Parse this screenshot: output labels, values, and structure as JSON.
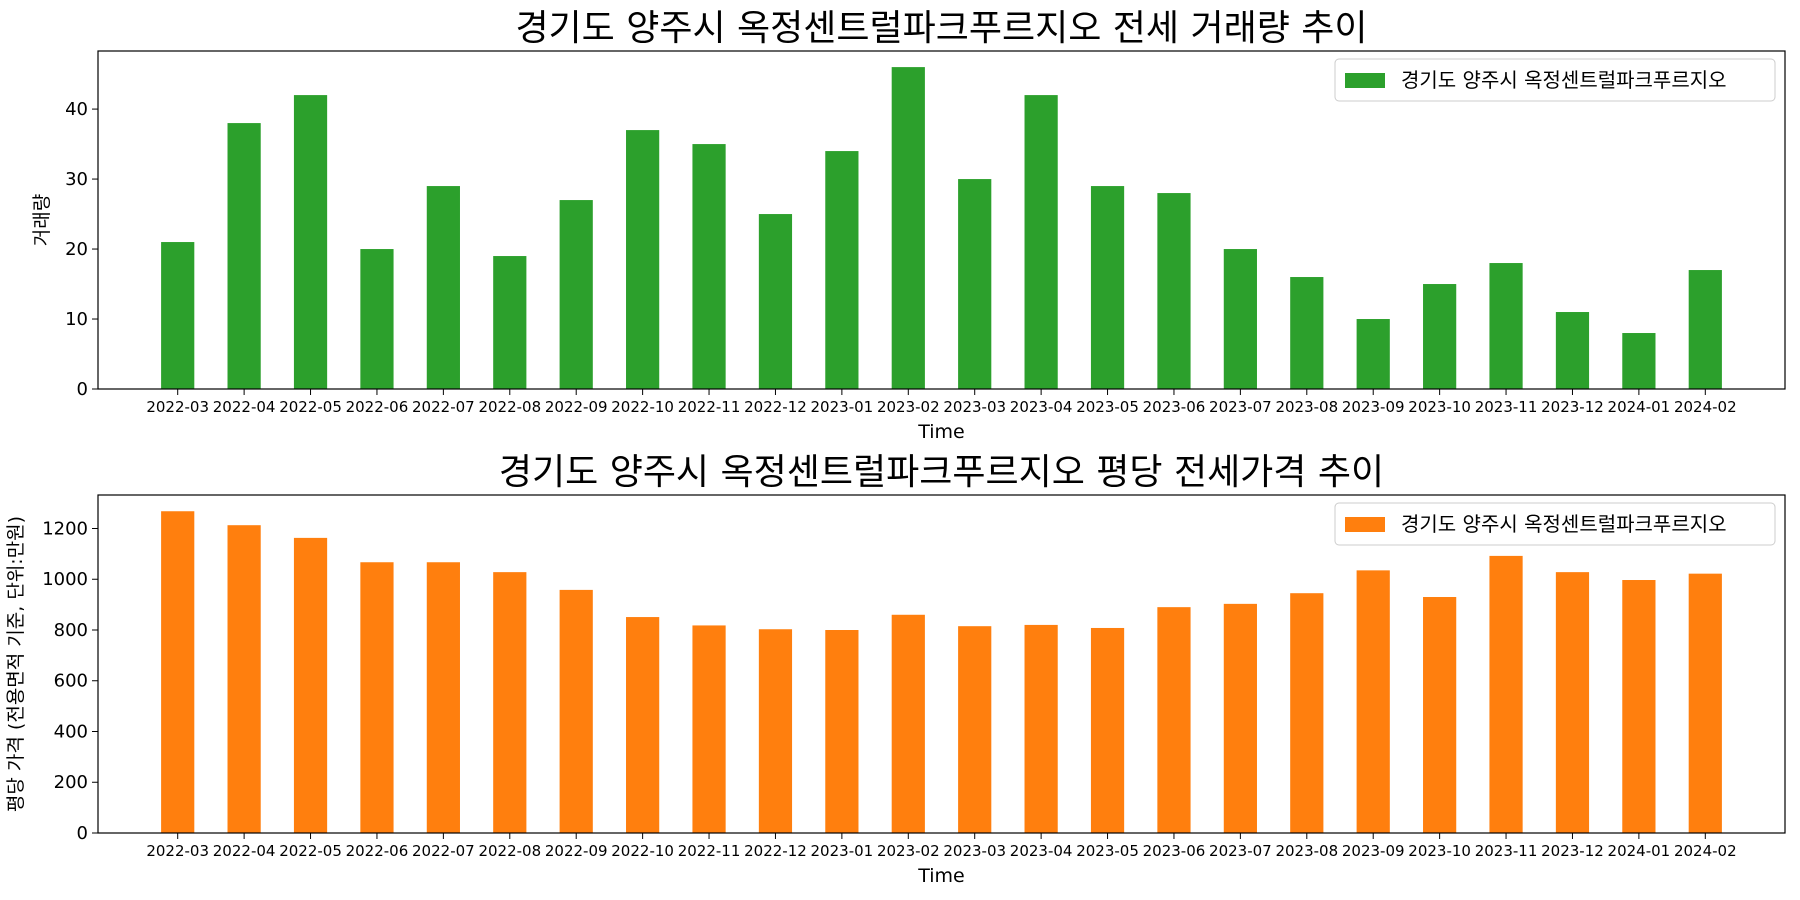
{
  "chart_data": [
    {
      "type": "bar",
      "title": "경기도 양주시 옥정센트럴파크푸르지오 전세 거래량 추이",
      "xlabel": "Time",
      "ylabel": "거래량",
      "categories": [
        "2022-03",
        "2022-04",
        "2022-05",
        "2022-06",
        "2022-07",
        "2022-08",
        "2022-09",
        "2022-10",
        "2022-11",
        "2022-12",
        "2023-01",
        "2023-02",
        "2023-03",
        "2023-04",
        "2023-05",
        "2023-06",
        "2023-07",
        "2023-08",
        "2023-09",
        "2023-10",
        "2023-11",
        "2023-12",
        "2024-01",
        "2024-02"
      ],
      "series": [
        {
          "name": "경기도 양주시 옥정센트럴파크푸르지오",
          "color": "#2ca02c",
          "values": [
            21,
            38,
            42,
            20,
            29,
            19,
            27,
            37,
            35,
            25,
            34,
            46,
            30,
            42,
            29,
            28,
            20,
            16,
            10,
            15,
            18,
            11,
            8,
            17
          ]
        }
      ],
      "ylim": [
        0,
        48.3
      ],
      "yticks": [
        0,
        10,
        20,
        30,
        40
      ],
      "legend": "top-right",
      "grid": false
    },
    {
      "type": "bar",
      "title": "경기도 양주시 옥정센트럴파크푸르지오 평당 전세가격 추이",
      "xlabel": "Time",
      "ylabel": "평당 가격 (전용면적 기준, 단위:만원)",
      "categories": [
        "2022-03",
        "2022-04",
        "2022-05",
        "2022-06",
        "2022-07",
        "2022-08",
        "2022-09",
        "2022-10",
        "2022-11",
        "2022-12",
        "2023-01",
        "2023-02",
        "2023-03",
        "2023-04",
        "2023-05",
        "2023-06",
        "2023-07",
        "2023-08",
        "2023-09",
        "2023-10",
        "2023-11",
        "2023-12",
        "2024-01",
        "2024-02"
      ],
      "series": [
        {
          "name": "경기도 양주시 옥정센트럴파크푸르지오",
          "color": "#ff7f0e",
          "values": [
            1268,
            1213,
            1163,
            1067,
            1067,
            1028,
            958,
            851,
            818,
            803,
            800,
            860,
            815,
            820,
            808,
            890,
            903,
            945,
            1035,
            930,
            1092,
            1028,
            997,
            1022
          ]
        }
      ],
      "ylim": [
        0,
        1332
      ],
      "yticks": [
        0,
        200,
        400,
        600,
        800,
        1000,
        1200
      ],
      "legend": "top-right",
      "grid": false
    }
  ]
}
